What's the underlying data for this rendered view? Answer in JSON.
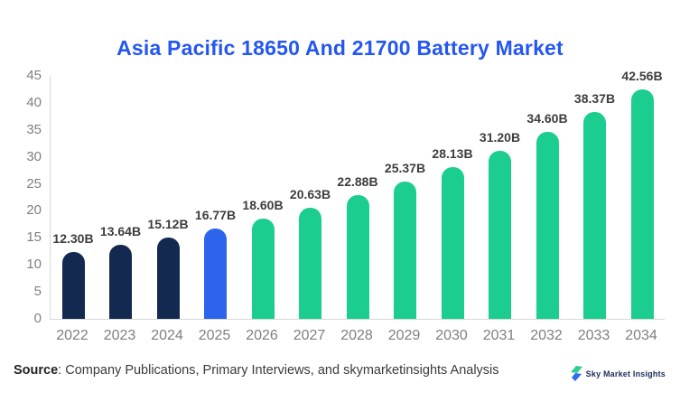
{
  "page": {
    "title": "Asia Pacific 18650 And 21700 Battery Market"
  },
  "chart_data": {
    "type": "bar",
    "title": "Asia Pacific 18650 And 21700 Battery Market",
    "categories": [
      "2022",
      "2023",
      "2024",
      "2025",
      "2026",
      "2027",
      "2028",
      "2029",
      "2030",
      "2031",
      "2032",
      "2033",
      "2034"
    ],
    "values": [
      12.3,
      13.64,
      15.12,
      16.77,
      18.6,
      20.63,
      22.88,
      25.37,
      28.13,
      31.2,
      34.6,
      38.37,
      42.56
    ],
    "value_labels": [
      "12.30B",
      "13.64B",
      "15.12B",
      "16.77B",
      "18.60B",
      "20.63B",
      "22.88B",
      "25.37B",
      "28.13B",
      "31.20B",
      "34.60B",
      "38.37B",
      "42.56B"
    ],
    "unit": "B",
    "xlabel": "",
    "ylabel": "",
    "ylim": [
      0,
      45
    ],
    "yticks": [
      0,
      5,
      10,
      15,
      20,
      25,
      30,
      35,
      40,
      45
    ],
    "grid": false,
    "legend": null,
    "bar_colors": [
      "#13294f",
      "#13294f",
      "#13294f",
      "#2d64ee",
      "#1bce8f",
      "#1bce8f",
      "#1bce8f",
      "#1bce8f",
      "#1bce8f",
      "#1bce8f",
      "#1bce8f",
      "#1bce8f",
      "#1bce8f"
    ],
    "colors": {
      "historical": "#13294f",
      "base_year": "#2d64ee",
      "forecast": "#1bce8f",
      "title": "#2457f0",
      "axis_line": "#d8d8d8",
      "tick_label": "#7f7f7f",
      "value_label": "#3d3d3d"
    }
  },
  "footer": {
    "source_label": "Source",
    "source_text": ": Company Publications, Primary Interviews, and skymarketinsights Analysis",
    "brand_name": "Sky Market Insights",
    "logo_colors": {
      "top": "#2ecf8e",
      "bottom": "#2d6bf0"
    }
  }
}
